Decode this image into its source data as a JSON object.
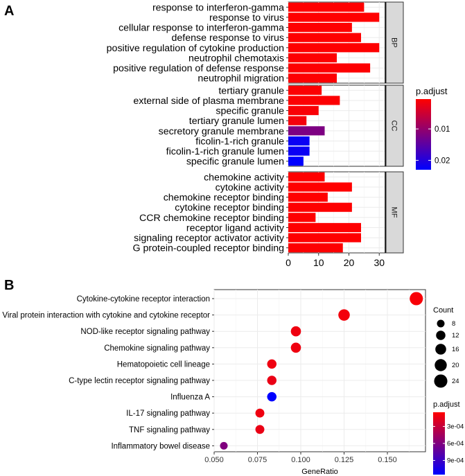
{
  "panel_a_label": "A",
  "panel_b_label": "B",
  "chart_data": [
    {
      "type": "bar",
      "orientation": "horizontal",
      "panel": "A",
      "xlabel": "",
      "ylabel": "",
      "xlim": [
        0,
        32
      ],
      "x_ticks": [
        "0",
        "10",
        "20",
        "30"
      ],
      "x_tick_values": [
        0,
        10,
        20,
        30
      ],
      "color_legend": {
        "title": "p.adjust",
        "min": 0.0005,
        "max": 0.023,
        "ticks": [
          "0.01",
          "0.02"
        ],
        "tick_values": [
          0.01,
          0.02
        ],
        "low_color": "#ff0000",
        "high_color": "#0000ff"
      },
      "facets": [
        {
          "name": "BP",
          "categories": [
            "response to interferon-gamma",
            "response to virus",
            "cellular response to interferon-gamma",
            "defense response to virus",
            "positive regulation of cytokine production",
            "neutrophil chemotaxis",
            "positive regulation of defense response",
            "neutrophil migration"
          ],
          "values": [
            25,
            30,
            21,
            24,
            30,
            16,
            27,
            16
          ],
          "p_adjust": [
            0.0005,
            0.0005,
            0.0006,
            0.0006,
            0.0006,
            0.0007,
            0.0007,
            0.0007
          ]
        },
        {
          "name": "CC",
          "categories": [
            "tertiary granule",
            "external side of plasma membrane",
            "specific granule",
            "tertiary granule lumen",
            "secretory granule membrane",
            "ficolin-1-rich granule",
            "ficolin-1-rich granule lumen",
            "specific granule lumen"
          ],
          "values": [
            11,
            17,
            10,
            6,
            12,
            7,
            7,
            5
          ],
          "p_adjust": [
            0.0008,
            0.0008,
            0.001,
            0.0015,
            0.012,
            0.022,
            0.022,
            0.023
          ]
        },
        {
          "name": "MF",
          "categories": [
            "chemokine activity",
            "cytokine activity",
            "chemokine receptor binding",
            "cytokine receptor binding",
            "CCR chemokine receptor binding",
            "receptor ligand activity",
            "signaling receptor activator activity",
            "G protein-coupled receptor binding"
          ],
          "values": [
            12,
            21,
            13,
            21,
            9,
            24,
            24,
            18
          ],
          "p_adjust": [
            0.0005,
            0.0005,
            0.0005,
            0.0006,
            0.0006,
            0.0006,
            0.0006,
            0.0007
          ]
        }
      ]
    },
    {
      "type": "scatter",
      "panel": "B",
      "xlabel": "GeneRatio",
      "ylabel": "",
      "xlim": [
        0.05,
        0.172
      ],
      "x_ticks": [
        "0.050",
        "0.075",
        "0.100",
        "0.125",
        "0.150"
      ],
      "x_tick_values": [
        0.05,
        0.075,
        0.1,
        0.125,
        0.15
      ],
      "categories": [
        "Cytokine-cytokine receptor interaction",
        "Viral protein interaction with cytokine and cytokine receptor",
        "NOD-like receptor signaling pathway",
        "Chemokine signaling pathway",
        "Hematopoietic cell lineage",
        "C-type lectin receptor signaling pathway",
        "Influenza A",
        "IL-17 signaling pathway",
        "TNF signaling pathway",
        "Inflammatory bowel disease"
      ],
      "gene_ratio": [
        0.1667,
        0.125,
        0.0972,
        0.0972,
        0.0833,
        0.0833,
        0.0833,
        0.0764,
        0.0764,
        0.0556
      ],
      "count": [
        24,
        18,
        14,
        14,
        12,
        12,
        12,
        11,
        11,
        8
      ],
      "p_adjust": [
        8e-05,
        0.0001,
        0.00012,
        0.00012,
        0.00012,
        0.00014,
        0.00115,
        0.00012,
        0.00014,
        0.0006
      ],
      "size_legend": {
        "title": "Count",
        "labels": [
          "8",
          "12",
          "16",
          "20",
          "24"
        ],
        "values": [
          8,
          12,
          16,
          20,
          24
        ]
      },
      "color_legend": {
        "title": "p.adjust",
        "min": 5e-05,
        "max": 0.00115,
        "ticks": [
          "3e-04",
          "6e-04",
          "9e-04"
        ],
        "tick_values": [
          0.0003,
          0.0006,
          0.0009
        ],
        "low_color": "#ff0000",
        "high_color": "#0000ff"
      }
    }
  ]
}
